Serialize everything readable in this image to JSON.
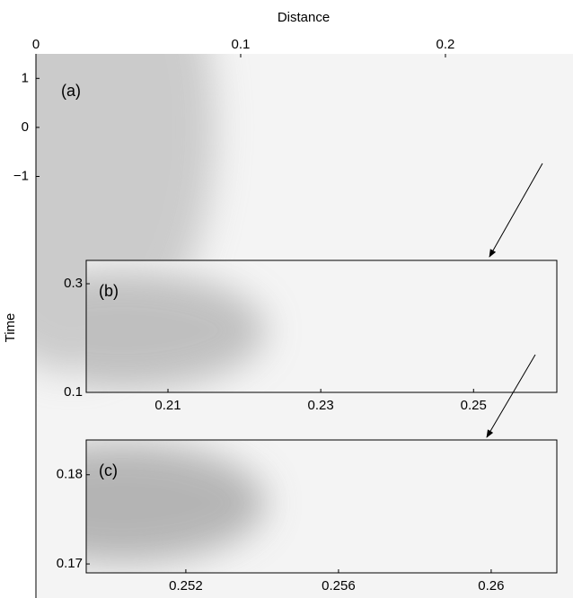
{
  "chart_data": [
    {
      "type": "heatmap",
      "panel_label": "(a)",
      "x_label": "Distance",
      "y_label": "Time",
      "xlim": [
        0,
        0.2623
      ],
      "ylim": [
        -9.6,
        1.5
      ],
      "xticks": [
        0,
        0.1,
        0.2
      ],
      "yticks": [
        1,
        0,
        {
          "value": -1,
          "label": "−1"
        }
      ]
    },
    {
      "type": "heatmap",
      "panel_label": "(b)",
      "xlim": [
        0.1993,
        0.2609
      ],
      "ylim": [
        0.1,
        0.343
      ],
      "xticks": [
        0.21,
        0.23,
        0.25
      ],
      "yticks": [
        0.3,
        0.1
      ]
    },
    {
      "type": "heatmap",
      "panel_label": "(c)",
      "xlim": [
        0.24939,
        0.26172
      ],
      "ylim": [
        0.169,
        0.1839
      ],
      "xticks": [
        0.252,
        0.256,
        0.26
      ],
      "yticks": [
        0.18,
        0.17
      ]
    }
  ]
}
